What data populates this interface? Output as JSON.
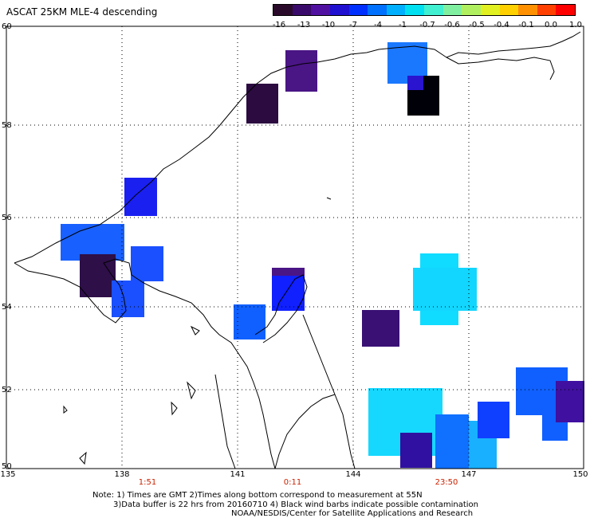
{
  "title": "ASCAT 25KM MLE-4 descending",
  "colorbar": {
    "colors": [
      "#2a0a2a",
      "#3a0a6a",
      "#5010a0",
      "#2010d0",
      "#0030ff",
      "#0070ff",
      "#00b0ff",
      "#00e0f0",
      "#40f0d0",
      "#80f0a0",
      "#b0f060",
      "#e0f020",
      "#ffd000",
      "#ff9000",
      "#ff4000",
      "#ff0000"
    ],
    "labels": [
      "-16",
      "-13",
      "-10",
      "-7",
      "-4",
      "-1",
      "-0.7",
      "-0.6",
      "-0.5",
      "-0.4",
      "-0.1",
      "0.0",
      "1.0"
    ]
  },
  "latitudes": [
    "60",
    "58",
    "56",
    "54",
    "52",
    "50"
  ],
  "longitudes": [
    "135",
    "138",
    "141",
    "144",
    "147",
    "150"
  ],
  "times": [
    "1:51",
    "0:11",
    "23:50"
  ],
  "note": {
    "line1": "Note: 1) Times are GMT 2)Times along bottom correspond to measurement at 55N",
    "line2": "3)Data buffer is 22 hrs from 20160710 4) Black wind barbs indicate possible contamination",
    "line3": "NOAA/NESDIS/Center for Satellite Applications and Research"
  }
}
